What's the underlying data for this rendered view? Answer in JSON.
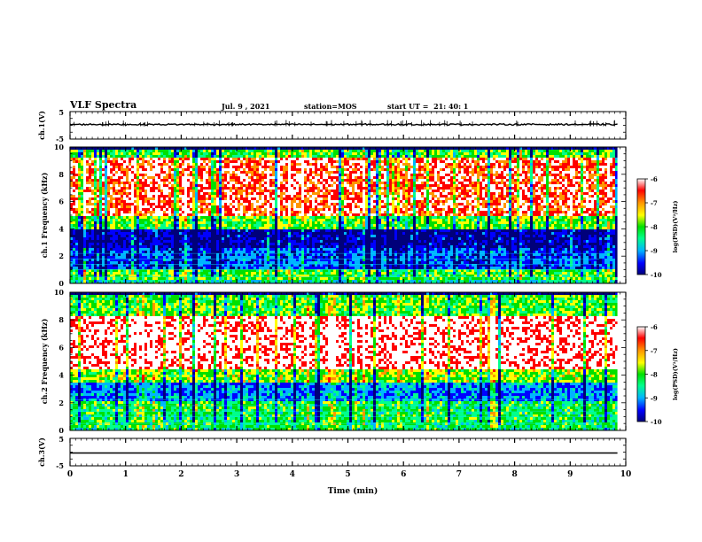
{
  "header": {
    "title": "VLF Spectra",
    "date": "Jul. 9 , 2021",
    "station": "station=MOS",
    "start": "start UT =  21: 40: 1"
  },
  "chart_data": [
    {
      "type": "line",
      "panel": "ch.1(V)",
      "ylabel": "ch.1(V)",
      "ylim": [
        -5,
        5
      ],
      "yticks": [
        "5",
        "-5"
      ],
      "xlim": [
        0,
        10
      ],
      "series": [
        {
          "x": [
            0,
            9.85
          ],
          "values": [
            0,
            0
          ]
        }
      ]
    },
    {
      "type": "heatmap",
      "panel": "ch.1 spectrogram",
      "ylabel": "ch.1 Frequency (kHz)",
      "ylim": [
        0,
        10
      ],
      "yticks": [
        "0",
        "2",
        "4",
        "6",
        "8",
        "10"
      ],
      "xlim": [
        0,
        10
      ],
      "data_end_min": 9.85,
      "colorbar": {
        "label": "log(PSD)(V²/Hz)",
        "range": [
          -10,
          -6
        ],
        "ticks": [
          "-6",
          "-7",
          "-8",
          "-9",
          "-10"
        ]
      },
      "bands_khz_logpsd": [
        [
          0,
          0.3,
          -8.5
        ],
        [
          0.3,
          1.2,
          -8.0
        ],
        [
          1.2,
          2.6,
          -9.2
        ],
        [
          2.6,
          4.0,
          -9.6
        ],
        [
          4.0,
          5.0,
          -8.0
        ],
        [
          5.0,
          9.3,
          -6.6
        ],
        [
          9.3,
          10,
          -8.0
        ]
      ]
    },
    {
      "type": "heatmap",
      "panel": "ch.2 spectrogram",
      "ylabel": "ch.2 Frequency (kHz)",
      "ylim": [
        0,
        10
      ],
      "yticks": [
        "0",
        "2",
        "4",
        "6",
        "8",
        "10"
      ],
      "xlim": [
        0,
        10
      ],
      "data_end_min": 9.85,
      "colorbar": {
        "label": "log(PSD)(V²/Hz)",
        "range": [
          -10,
          -6
        ],
        "ticks": [
          "-6",
          "-7",
          "-8",
          "-9",
          "-10"
        ]
      },
      "bands_khz_logpsd": [
        [
          0,
          0.3,
          -8.3
        ],
        [
          0.3,
          2.2,
          -8.2
        ],
        [
          2.2,
          3.5,
          -9.0
        ],
        [
          3.5,
          4.5,
          -7.8
        ],
        [
          4.5,
          8.3,
          -6.3
        ],
        [
          8.3,
          10,
          -8.0
        ]
      ]
    },
    {
      "type": "line",
      "panel": "ch.3(V)",
      "ylabel": "ch.3(V)",
      "ylim": [
        -5,
        5
      ],
      "yticks": [
        "5",
        "-5"
      ],
      "xlim": [
        0,
        10
      ],
      "series": [
        {
          "x": [
            0,
            9.85
          ],
          "values": [
            0,
            0
          ]
        }
      ]
    }
  ],
  "xaxis": {
    "label": "Time (min)",
    "ticks": [
      "0",
      "1",
      "2",
      "3",
      "4",
      "5",
      "6",
      "7",
      "8",
      "9",
      "10"
    ]
  },
  "colors": {
    "colormap": [
      "#00007a",
      "#0000ff",
      "#00b4ff",
      "#00ff8c",
      "#00e000",
      "#ffff00",
      "#ff9600",
      "#ff0000",
      "#ffffff"
    ],
    "line": "#000000"
  }
}
